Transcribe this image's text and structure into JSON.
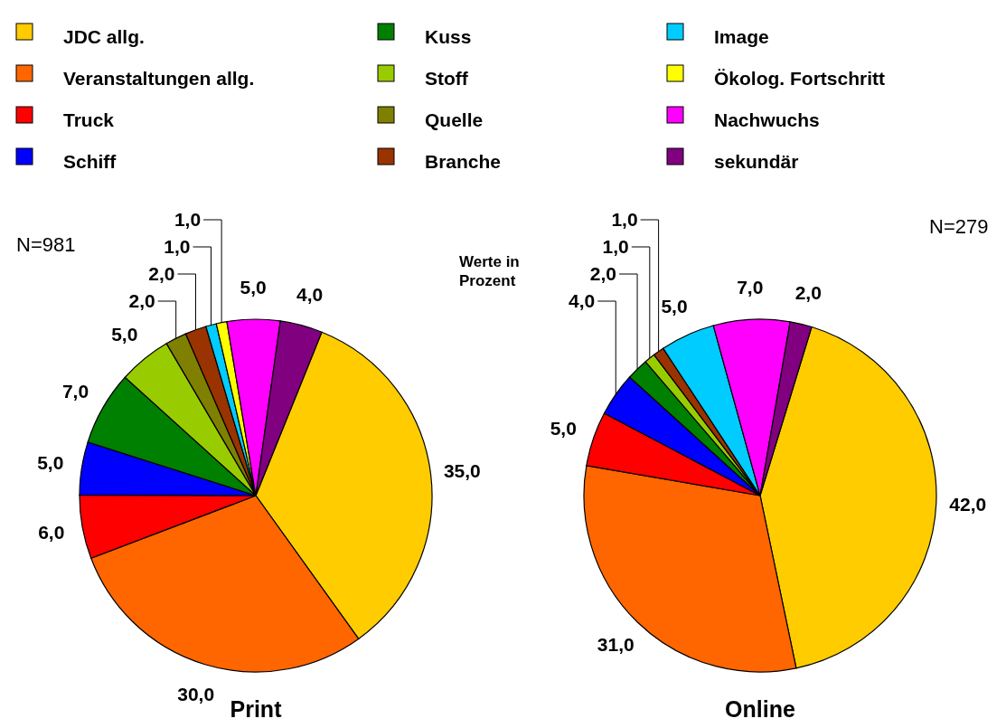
{
  "chart_data": [
    {
      "type": "pie",
      "title": "Print",
      "categories": [
        "JDC allg.",
        "Veranstaltungen allg.",
        "Truck",
        "Schiff",
        "Kuss",
        "Stoff",
        "Quelle",
        "Branche",
        "Image",
        "Ökolog. Fortschritt",
        "Nachwuchs",
        "sekundär"
      ],
      "values": [
        35,
        30,
        6,
        5,
        7,
        5,
        2,
        2,
        1,
        1,
        5,
        4
      ],
      "value_labels": [
        "35,0",
        "30,0",
        "6,0",
        "5,0",
        "7,0",
        "5,0",
        "2,0",
        "2,0",
        "1,0",
        "1,0",
        "5,0",
        "4,0"
      ],
      "colors": [
        "#ffcc00",
        "#ff6600",
        "#ff0000",
        "#0000ff",
        "#008000",
        "#99cc00",
        "#808000",
        "#993300",
        "#00ccff",
        "#ffff00",
        "#ff00ff",
        "#800080"
      ],
      "legend": "top",
      "annotations": [
        "N=981",
        "Werte in Prozent"
      ]
    },
    {
      "type": "pie",
      "title": "Online",
      "categories": [
        null,
        null,
        null,
        null,
        null,
        null,
        null,
        null,
        null,
        null,
        null,
        null
      ],
      "values": [
        42,
        31,
        5,
        4,
        2,
        1,
        0,
        1,
        5,
        0,
        7,
        2
      ],
      "value_labels": [
        "42,0",
        "31,0",
        "5,0",
        "4,0",
        "2,0",
        "1,0",
        null,
        "1,0",
        "5,0",
        null,
        "7,0",
        "2,0"
      ],
      "colors": [
        "#ffcc00",
        "#ff6600",
        "#ff0000",
        "#0000ff",
        "#008000",
        "#99cc00",
        "#808000",
        "#993300",
        "#00ccff",
        "#ffff00",
        "#ff00ff",
        "#800080"
      ],
      "annotations": [
        "N=279"
      ]
    }
  ]
}
